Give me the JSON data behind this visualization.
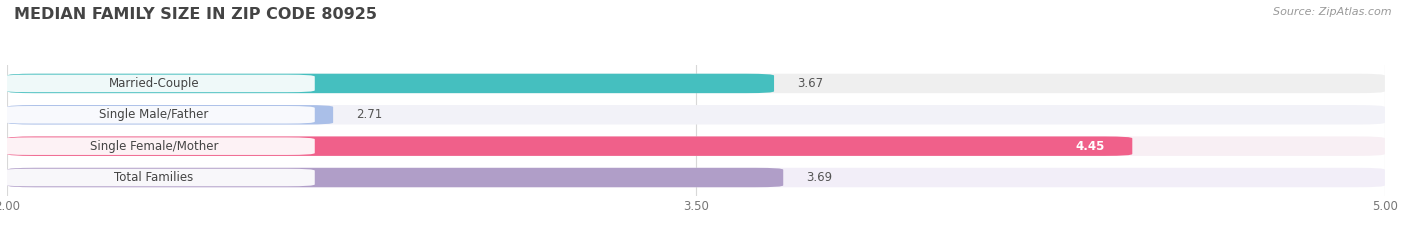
{
  "title": "Median Family Size in Zip Code 80925",
  "title_display": "MEDIAN FAMILY SIZE IN ZIP CODE 80925",
  "source": "Source: ZipAtlas.com",
  "categories": [
    "Married-Couple",
    "Single Male/Father",
    "Single Female/Mother",
    "Total Families"
  ],
  "values": [
    3.67,
    2.71,
    4.45,
    3.69
  ],
  "bar_colors": [
    "#45bfbf",
    "#aabfe8",
    "#f0608a",
    "#b09ec8"
  ],
  "bar_bg_colors": [
    "#efefef",
    "#f2f2f8",
    "#f8eff4",
    "#f2eef8"
  ],
  "value_colors": [
    "#555555",
    "#555555",
    "#ffffff",
    "#555555"
  ],
  "xlim": [
    2.0,
    5.0
  ],
  "xticks": [
    2.0,
    3.5,
    5.0
  ],
  "xtick_labels": [
    "2.00",
    "3.50",
    "5.00"
  ],
  "bar_height": 0.62,
  "background_color": "#ffffff",
  "title_fontsize": 11.5,
  "label_fontsize": 8.5,
  "value_fontsize": 8.5,
  "source_fontsize": 8.0
}
